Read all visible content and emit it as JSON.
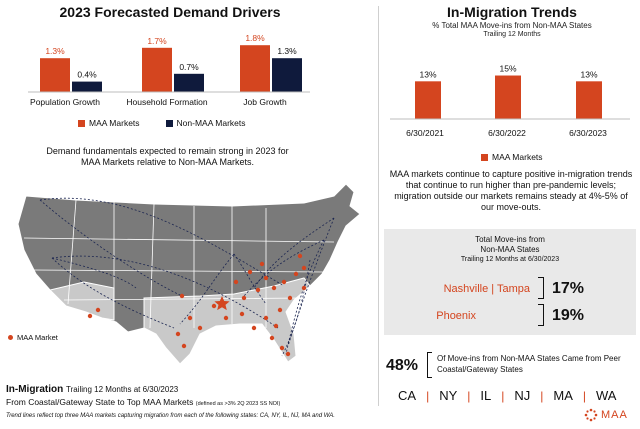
{
  "colors": {
    "maa": "#d4451f",
    "non_maa": "#0f1a3c",
    "accent": "#d4451f",
    "panel": "#e9e9e9"
  },
  "left": {
    "title": "2023 Forecasted Demand Drivers",
    "legend": {
      "maa": "MAA Markets",
      "non_maa": "Non-MAA Markets"
    },
    "caption": "Demand fundamentals expected to remain strong in 2023 for MAA Markets relative to Non-MAA Markets.",
    "map_legend": "MAA Market",
    "footer": {
      "title": "In-Migration",
      "title_sub": "Trailing 12 Months at 6/30/2023",
      "line2": "From Coastal/Gateway State to Top MAA Markets",
      "line2_note": "(defined as >3% 2Q 2023 SS NOI)",
      "footnote": "Trend lines reflect top three MAA markets capturing migration from each of the following states: CA, NY, IL, NJ, MA and WA."
    }
  },
  "right": {
    "title": "In-Migration Trends",
    "subtitle": "% Total MAA Move-ins from Non-MAA States",
    "subtitle2": "Trailing 12 Months",
    "legend": "MAA Markets",
    "paragraph": "MAA markets continue to capture positive in-migration trends that continue to run higher than pre-pandemic levels; migration outside our markets remains steady at 4%-5% of our move-outs.",
    "panel": {
      "title": "Total Move-ins from",
      "title2": "Non-MAA States",
      "subtitle": "Trailing 12 Months at 6/30/2023",
      "rows": [
        {
          "name": "Nashville | Tampa",
          "value": "17%"
        },
        {
          "name": "Phoenix",
          "value": "19%"
        }
      ]
    },
    "stat": {
      "value": "48%",
      "text": "Of Move-ins from Non-MAA States Came from Peer Coastal/Gateway States"
    },
    "states": [
      "CA",
      "NY",
      "IL",
      "NJ",
      "MA",
      "WA"
    ],
    "logo": "MAA"
  },
  "chart_data": [
    {
      "type": "bar",
      "title": "2023 Forecasted Demand Drivers",
      "categories": [
        "Population Growth",
        "Household Formation",
        "Job Growth"
      ],
      "series": [
        {
          "name": "MAA Markets",
          "values": [
            1.3,
            1.7,
            1.8
          ],
          "labels": [
            "1.3%",
            "1.7%",
            "1.8%"
          ]
        },
        {
          "name": "Non-MAA Markets",
          "values": [
            0.4,
            0.7,
            1.3
          ],
          "labels": [
            "0.4%",
            "0.7%",
            "1.3%"
          ]
        }
      ],
      "ylim": [
        0,
        2.0
      ]
    },
    {
      "type": "bar",
      "title": "In-Migration Trends",
      "categories": [
        "6/30/2021",
        "6/30/2022",
        "6/30/2023"
      ],
      "series": [
        {
          "name": "MAA Markets",
          "values": [
            13,
            15,
            13
          ],
          "labels": [
            "13%",
            "15%",
            "13%"
          ]
        }
      ],
      "ylim": [
        0,
        17
      ]
    }
  ]
}
